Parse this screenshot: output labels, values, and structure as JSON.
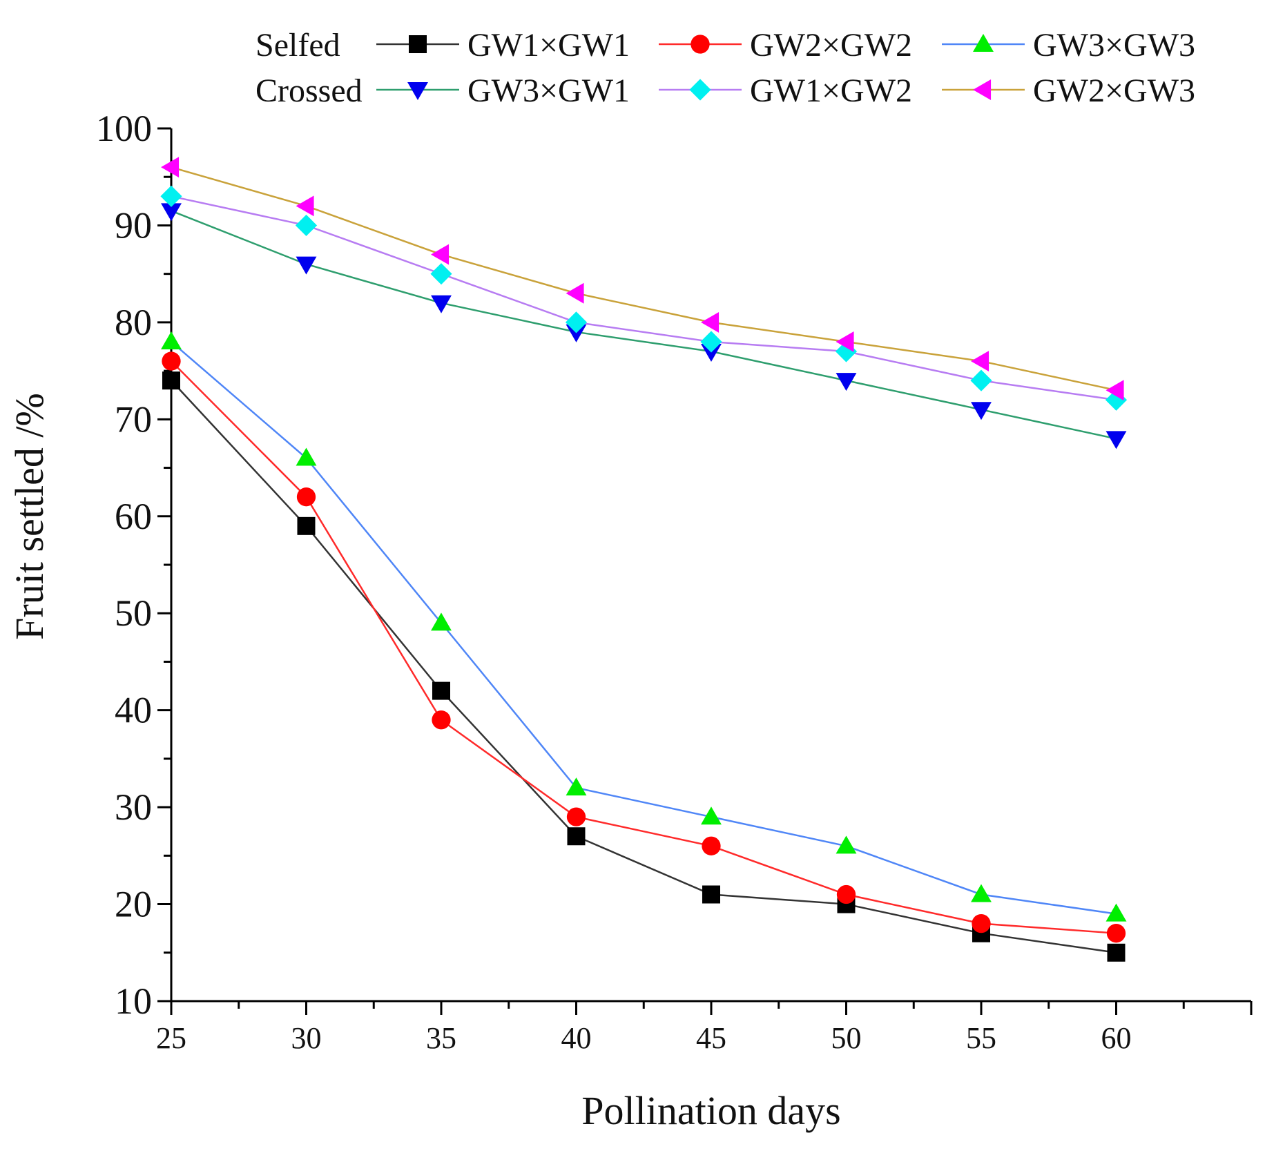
{
  "chart_data": {
    "type": "line",
    "title": "",
    "xlabel": "Pollination days",
    "ylabel": "Fruit settled /%",
    "x": [
      25,
      30,
      35,
      40,
      45,
      50,
      55,
      60
    ],
    "x_ticks": [
      "25",
      "30",
      "35",
      "40",
      "45",
      "50",
      "55",
      "60"
    ],
    "xlim": [
      25,
      65
    ],
    "ylim": [
      10,
      100
    ],
    "y_ticks": [
      "10",
      "20",
      "30",
      "40",
      "50",
      "60",
      "70",
      "80",
      "90",
      "100"
    ],
    "grid": false,
    "legend_position": "top",
    "legend_groups": [
      {
        "label": "Selfed",
        "series_names": [
          "GW1×GW1",
          "GW2×GW2",
          "GW3×GW3"
        ]
      },
      {
        "label": "Crossed",
        "series_names": [
          "GW3×GW1",
          "GW1×GW2",
          "GW2×GW3"
        ]
      }
    ],
    "series": [
      {
        "name": "GW1×GW1",
        "group": "Selfed",
        "marker": "square",
        "line_color": "#333333",
        "marker_color": "#000000",
        "values": [
          74,
          59,
          42,
          27,
          21,
          20,
          17,
          15
        ]
      },
      {
        "name": "GW2×GW2",
        "group": "Selfed",
        "marker": "circle",
        "line_color": "#ff2a2a",
        "marker_color": "#ff0000",
        "values": [
          76,
          62,
          39,
          29,
          26,
          21,
          18,
          17
        ]
      },
      {
        "name": "GW3×GW3",
        "group": "Selfed",
        "marker": "triangle-up",
        "line_color": "#4f86f7",
        "marker_color": "#00ee00",
        "values": [
          78,
          66,
          49,
          32,
          29,
          26,
          21,
          19
        ]
      },
      {
        "name": "GW3×GW1",
        "group": "Crossed",
        "marker": "triangle-down",
        "line_color": "#2e9e6e",
        "marker_color": "#0000ee",
        "values": [
          91.5,
          86,
          82,
          79,
          77,
          74,
          71,
          68
        ]
      },
      {
        "name": "GW1×GW2",
        "group": "Crossed",
        "marker": "diamond",
        "line_color": "#b77cf2",
        "marker_color": "#00f0f0",
        "values": [
          93,
          90,
          85,
          80,
          78,
          77,
          74,
          72
        ]
      },
      {
        "name": "GW2×GW3",
        "group": "Crossed",
        "marker": "triangle-left",
        "line_color": "#c9a23a",
        "marker_color": "#ff00ff",
        "values": [
          96,
          92,
          87,
          83,
          80,
          78,
          76,
          73
        ]
      }
    ]
  }
}
